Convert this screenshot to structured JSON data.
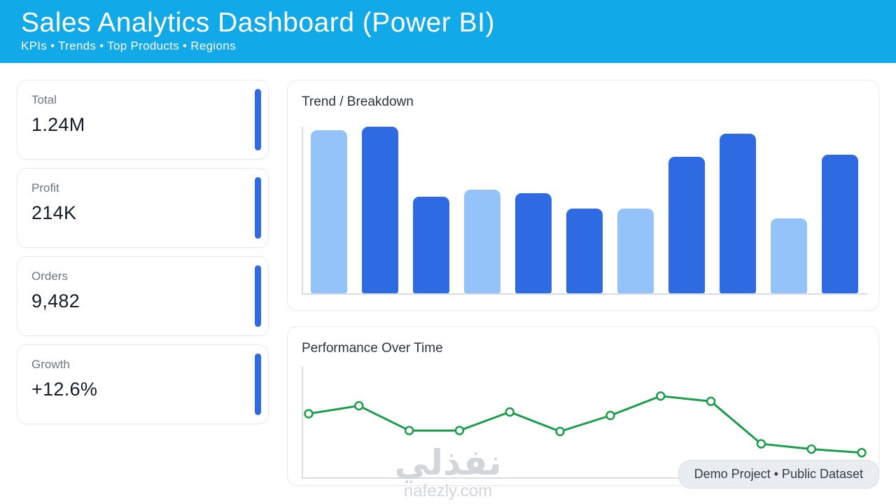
{
  "header": {
    "title": "Sales Analytics Dashboard (Power BI)",
    "subtitle": "KPIs • Trends • Top Products • Regions"
  },
  "kpis": [
    {
      "label": "Total",
      "value": "1.24M"
    },
    {
      "label": "Profit",
      "value": "214K"
    },
    {
      "label": "Orders",
      "value": "9,482"
    },
    {
      "label": "Growth",
      "value": "+12.6%"
    }
  ],
  "badge": {
    "text": "Demo Project • Public Dataset"
  },
  "watermark": {
    "arabic": "نفذلي",
    "domain": "nafezly.com"
  },
  "colors": {
    "header_bg": "#12a9e9",
    "bar_dark": "#2e6ae1",
    "bar_light": "#93c3f8",
    "line_green": "#189e4a",
    "kpi_accent": "#2e6ae1",
    "axis": "#d9dde3"
  },
  "chart_data": [
    {
      "type": "bar",
      "title": "Trend / Breakdown",
      "values": [
        98,
        100,
        58,
        62,
        60,
        51,
        51,
        82,
        96,
        45,
        83
      ],
      "bar_colors": [
        "light",
        "dark",
        "dark",
        "light",
        "dark",
        "dark",
        "light",
        "dark",
        "dark",
        "light",
        "dark"
      ],
      "ylim": [
        0,
        100
      ],
      "xlabel": "",
      "ylabel": "",
      "grid": false,
      "legend": false
    },
    {
      "type": "line",
      "title": "Performance Over Time",
      "values": [
        61,
        70,
        42,
        42,
        63,
        41,
        59,
        81,
        75,
        27,
        21,
        17
      ],
      "ylim": [
        0,
        100
      ],
      "marker": "open-circle",
      "grid": false,
      "legend": false
    }
  ]
}
